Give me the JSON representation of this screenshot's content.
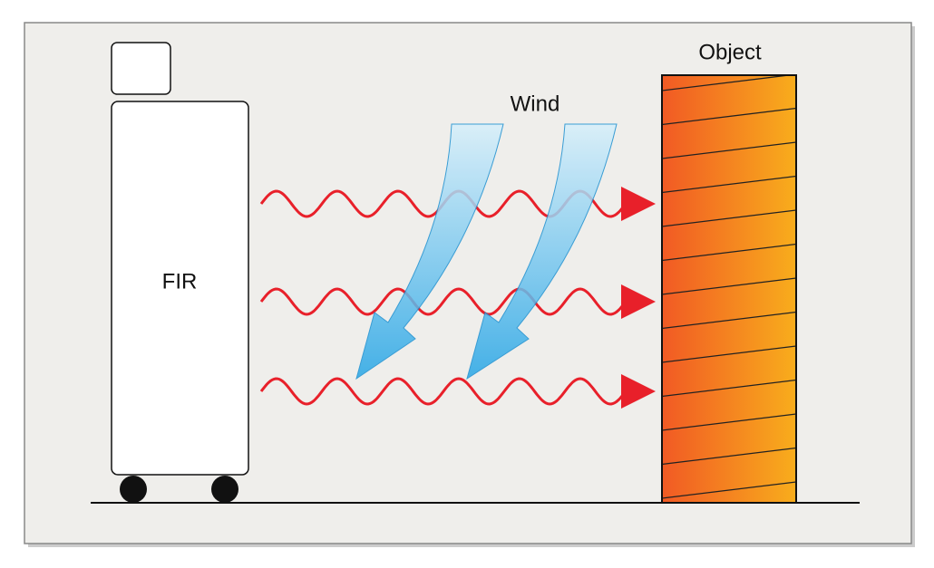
{
  "heater": {
    "label": "FIR"
  },
  "object": {
    "label": "Object"
  },
  "wind": {
    "label": "Wind"
  }
}
